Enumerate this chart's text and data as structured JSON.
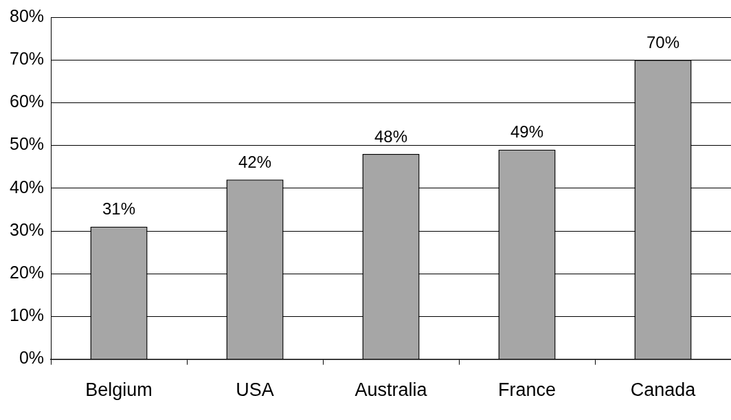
{
  "chart_data": {
    "type": "bar",
    "categories": [
      "Belgium",
      "USA",
      "Australia",
      "France",
      "Canada"
    ],
    "values": [
      31,
      42,
      48,
      49,
      70
    ],
    "color": "#a6a6a6",
    "value_labels": [
      "31%",
      "42%",
      "48%",
      "49%",
      "70%"
    ],
    "ylim": [
      0,
      80
    ],
    "yticks": [
      {
        "value": 0,
        "label": "0%"
      },
      {
        "value": 10,
        "label": "10%"
      },
      {
        "value": 20,
        "label": "20%"
      },
      {
        "value": 30,
        "label": "30%"
      },
      {
        "value": 40,
        "label": "40%"
      },
      {
        "value": 50,
        "label": "50%"
      },
      {
        "value": 60,
        "label": "60%"
      },
      {
        "value": 70,
        "label": "70%"
      },
      {
        "value": 80,
        "label": "80%"
      }
    ],
    "grid": "y"
  }
}
